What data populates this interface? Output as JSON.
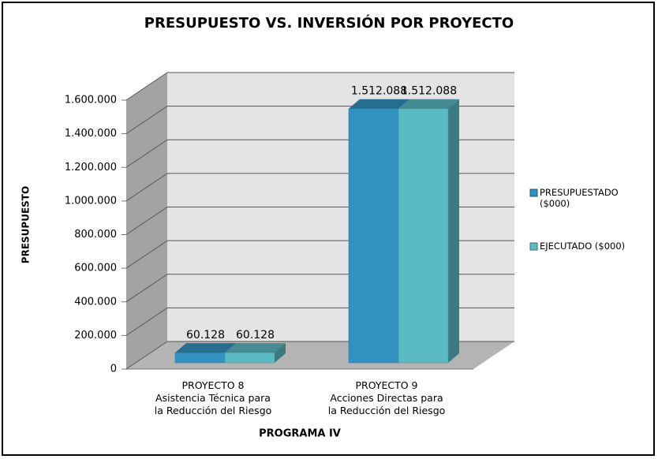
{
  "chart_data": {
    "type": "bar3d",
    "title": "PRESUPUESTO VS. INVERSIÓN POR PROYECTO",
    "y_label": "PRESUPUESTO",
    "x_label": "PROGRAMA IV",
    "categories": [
      "PROYECTO 8\nAsistencia Técnica para\nla Reducción del Riesgo",
      "PROYECTO 9\nAcciones Directas para\nla Reducción del Riesgo"
    ],
    "series": [
      {
        "name": "PRESUPUESTADO\n($000)",
        "color": "#3192c0",
        "values": [
          60128,
          1512088
        ],
        "value_labels": [
          "60.128",
          "1.512.088"
        ]
      },
      {
        "name": "EJECUTADO ($000)",
        "color": "#5bbbc3",
        "values": [
          60128,
          1512088
        ],
        "value_labels": [
          "60.128",
          "1.512.088"
        ]
      }
    ],
    "ylim": [
      0,
      1600000
    ],
    "yticks": [
      0,
      {
        "value": 200000,
        "label": "200.000"
      },
      {
        "value": 400000,
        "label": "400.000"
      },
      {
        "value": 600000,
        "label": "600.000"
      },
      {
        "value": 800000,
        "label": "800.000"
      },
      {
        "value": 1000000,
        "label": "1.000.000"
      },
      {
        "value": 1200000,
        "label": "1.200.000"
      },
      {
        "value": 1400000,
        "label": "1.400.000"
      },
      {
        "value": 1600000,
        "label": "1.600.000"
      }
    ],
    "grid": true,
    "legend": "right"
  }
}
